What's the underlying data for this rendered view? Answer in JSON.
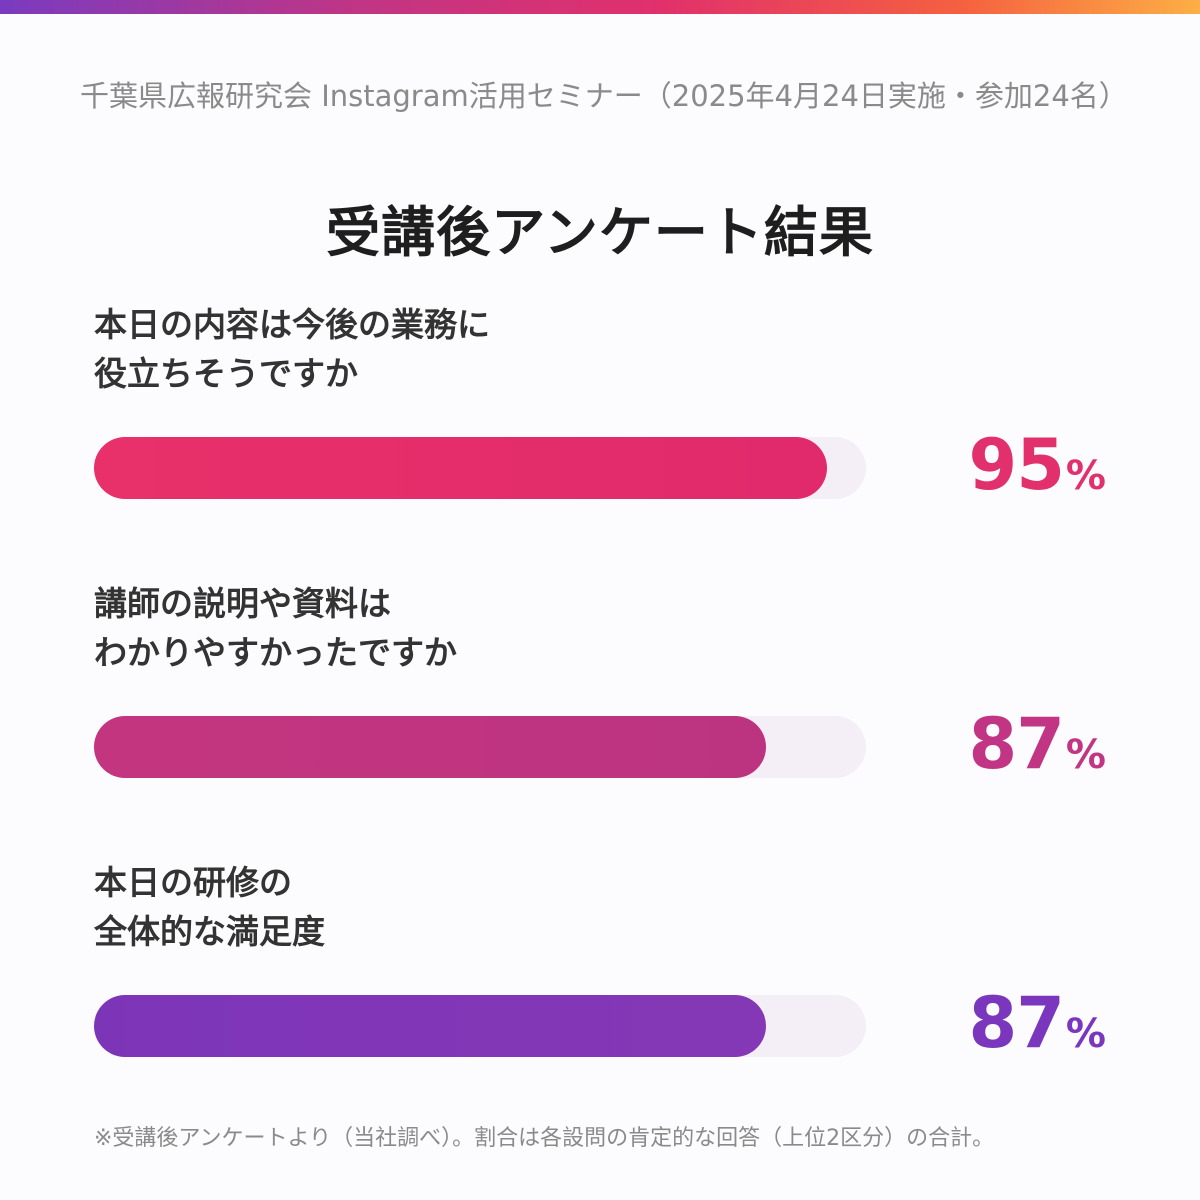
{
  "header": {
    "subtitle": "千葉県広報研究会 Instagram活用セミナー（2025年4月24日実施・参加24名）",
    "title": "受講後アンケート結果"
  },
  "chart_data": {
    "type": "bar",
    "orientation": "horizontal",
    "title": "受講後アンケート結果",
    "categories": [
      "本日の内容は今後の業務に役立ちそうですか",
      "講師の説明や資料はわかりやすかったですか",
      "本日の研修の全体的な満足度"
    ],
    "category_lines": [
      [
        "本日の内容は今後の業務に",
        "役立ちそうですか"
      ],
      [
        "講師の説明や資料は",
        "わかりやすかったですか"
      ],
      [
        "本日の研修の",
        "全体的な満足度"
      ]
    ],
    "values": [
      95,
      87,
      87
    ],
    "value_labels": [
      "95",
      "87",
      "87"
    ],
    "unit": "%",
    "xlim": [
      0,
      100
    ],
    "grid": false,
    "colors": [
      {
        "from": "#e8306a",
        "to": "#e02a6b"
      },
      {
        "from": "#c4357f",
        "to": "#bc3480"
      },
      {
        "from": "#7d35b8",
        "to": "#8538b6"
      }
    ],
    "label_colors": [
      "#e1306c",
      "#c13584",
      "#7b36be"
    ],
    "track_color": "#f4eef6"
  },
  "footnote": "※受講後アンケートより（当社調べ）。割合は各設問の肯定的な回答（上位2区分）の合計。"
}
